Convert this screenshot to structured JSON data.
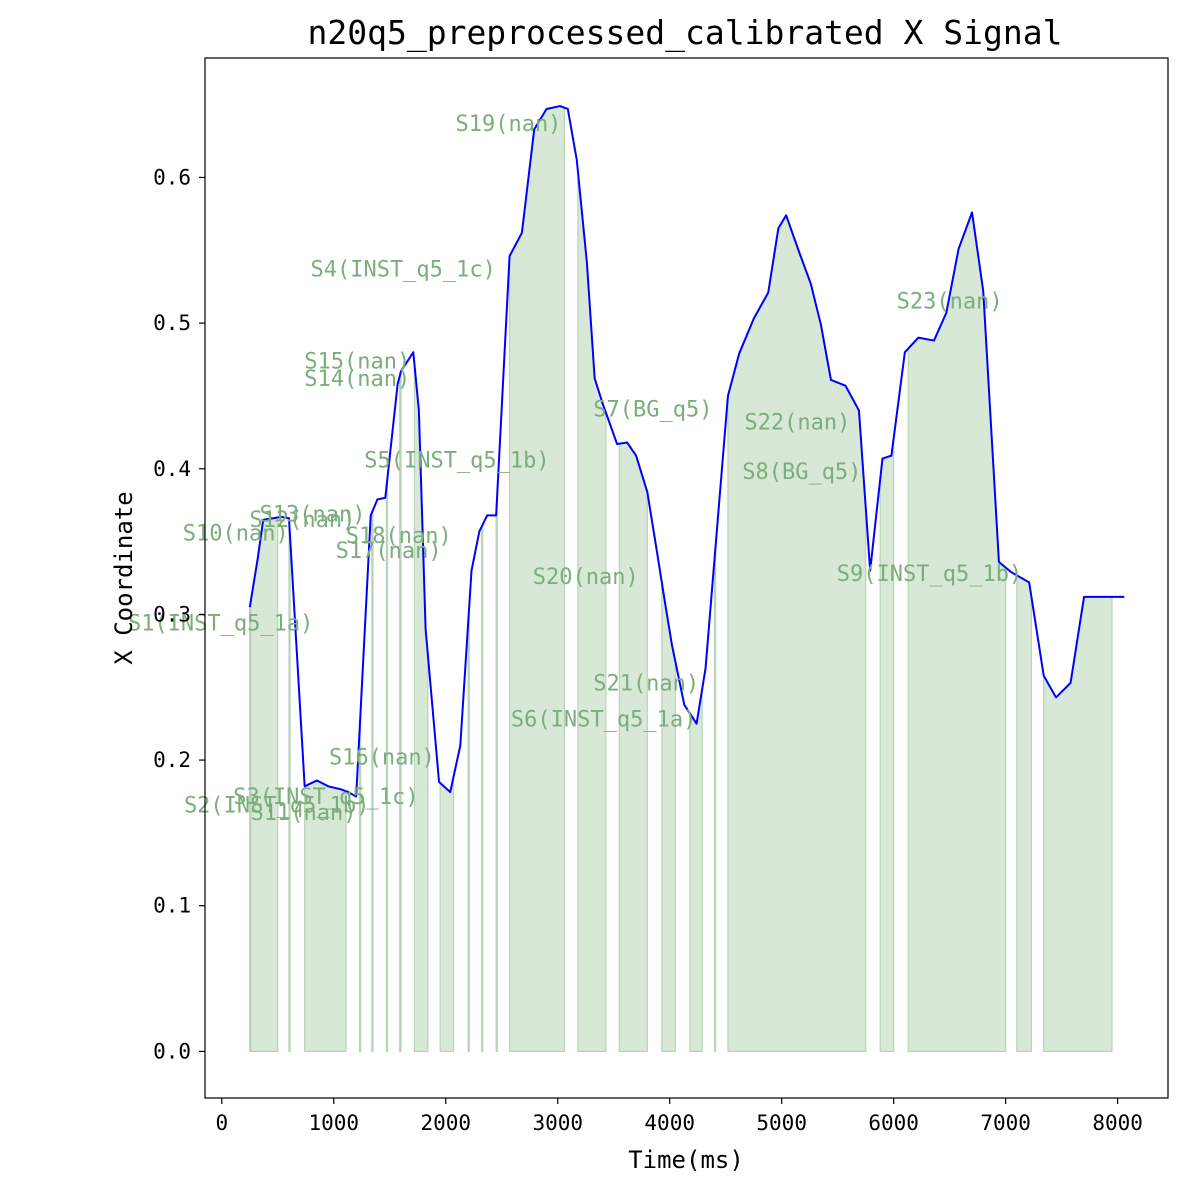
{
  "chart_data": {
    "type": "line",
    "title": "n20q5_preprocessed_calibrated X Signal",
    "xlabel": "Time(ms)",
    "ylabel": "X Coordinate",
    "xlim": [
      -150,
      8450
    ],
    "ylim": [
      -0.032,
      0.682
    ],
    "xticks": [
      0,
      1000,
      2000,
      3000,
      4000,
      5000,
      6000,
      7000,
      8000
    ],
    "yticks": [
      0.0,
      0.1,
      0.2,
      0.3,
      0.4,
      0.5,
      0.6
    ],
    "ytick_labels": [
      "0.0",
      "0.1",
      "0.2",
      "0.3",
      "0.4",
      "0.5",
      "0.6"
    ],
    "grid": false,
    "line_color": "#0000ff",
    "fill_color": "#d7e8d7",
    "fill_edge_color": "#b8d4b8",
    "label_color": "#7cad7c",
    "series": [
      {
        "x": [
          250,
          320,
          370,
          460,
          530,
          600,
          740,
          850,
          950,
          1060,
          1130,
          1200,
          1330,
          1390,
          1460,
          1570,
          1600,
          1660,
          1710,
          1760,
          1820,
          1940,
          2040,
          2130,
          2230,
          2300,
          2370,
          2450,
          2570,
          2680,
          2790,
          2900,
          3020,
          3090,
          3170,
          3260,
          3330,
          3400,
          3530,
          3620,
          3700,
          3800,
          3880,
          3950,
          4020,
          4130,
          4240,
          4320,
          4520,
          4620,
          4750,
          4880,
          4970,
          5040,
          5150,
          5260,
          5350,
          5440,
          5570,
          5690,
          5790,
          5900,
          5980,
          6100,
          6220,
          6360,
          6470,
          6580,
          6700,
          6800,
          6940,
          7050,
          7210,
          7340,
          7450,
          7580,
          7700,
          7810,
          7930,
          8060
        ],
        "values": [
          0.305,
          0.338,
          0.365,
          0.366,
          0.367,
          0.366,
          0.182,
          0.186,
          0.182,
          0.18,
          0.178,
          0.175,
          0.368,
          0.379,
          0.38,
          0.458,
          0.467,
          0.474,
          0.48,
          0.44,
          0.29,
          0.185,
          0.178,
          0.21,
          0.33,
          0.357,
          0.368,
          0.368,
          0.546,
          0.562,
          0.633,
          0.647,
          0.649,
          0.647,
          0.612,
          0.542,
          0.462,
          0.445,
          0.417,
          0.418,
          0.409,
          0.384,
          0.346,
          0.312,
          0.279,
          0.238,
          0.225,
          0.263,
          0.45,
          0.479,
          0.503,
          0.521,
          0.565,
          0.574,
          0.55,
          0.527,
          0.499,
          0.461,
          0.457,
          0.44,
          0.33,
          0.407,
          0.409,
          0.48,
          0.49,
          0.488,
          0.507,
          0.551,
          0.576,
          0.522,
          0.336,
          0.329,
          0.322,
          0.258,
          0.243,
          0.253,
          0.312,
          0.312,
          0.312,
          0.312
        ]
      }
    ],
    "segments": [
      {
        "label": "S1(INST_q5_1a)",
        "start": 250,
        "end": 500
      },
      {
        "label": "S2(INST_q5_1b)",
        "start": 600,
        "end": 610
      },
      {
        "label": "S3(INST_q5_1c)",
        "start": 740,
        "end": 1110
      },
      {
        "label": "S4(INST_q5_1c)",
        "start": 2570,
        "end": 3060
      },
      {
        "label": "S5(INST_q5_1b)",
        "start": 1720,
        "end": 1840
      },
      {
        "label": "S6(INST_q5_1a)",
        "start": 4180,
        "end": 4290
      },
      {
        "label": "S7(BG_q5)",
        "start": 3550,
        "end": 3800
      },
      {
        "label": "S8(BG_q5)",
        "start": 5880,
        "end": 6000
      },
      {
        "label": "S9(INST_q5_1b)",
        "start": 6130,
        "end": 7000
      },
      {
        "label": "S10(nan)",
        "start": 250,
        "end": 260
      },
      {
        "label": "S11(nan)",
        "start": 1230,
        "end": 1240
      },
      {
        "label": "S12(nan)",
        "start": 1340,
        "end": 1350
      },
      {
        "label": "S13(nan)",
        "start": 1470,
        "end": 1480
      },
      {
        "label": "S14(nan)",
        "start": 1590,
        "end": 1600
      },
      {
        "label": "S15(nan)",
        "start": 1590,
        "end": 1600
      },
      {
        "label": "S16(nan)",
        "start": 1950,
        "end": 2070
      },
      {
        "label": "S17(nan)",
        "start": 2200,
        "end": 2210
      },
      {
        "label": "S18(nan)",
        "start": 2320,
        "end": 2330
      },
      {
        "label": "S19(nan)",
        "start": 2450,
        "end": 2460
      },
      {
        "label": "S20(nan)",
        "start": 3180,
        "end": 3430
      },
      {
        "label": "S21(nan)",
        "start": 3930,
        "end": 4050
      },
      {
        "label": "S22(nan)",
        "start": 4520,
        "end": 5750
      },
      {
        "label": "S23(nan)",
        "start": 7100,
        "end": 7230
      },
      {
        "label": "",
        "start": 4400,
        "end": 4410
      },
      {
        "label": "",
        "start": 7340,
        "end": 7950
      }
    ],
    "annotations": [
      {
        "text": "S1(INST_q5_1a)",
        "x": -10,
        "y": 0.293
      },
      {
        "text": "S2(INST_q5_1b)",
        "x": 490,
        "y": 0.168
      },
      {
        "text": "S3(INST_q5_1c)",
        "x": 930,
        "y": 0.174
      },
      {
        "text": "S11(nan)",
        "x": 730,
        "y": 0.163
      },
      {
        "text": "S10(nan)",
        "x": 125,
        "y": 0.355
      },
      {
        "text": "S12(nan)",
        "x": 720,
        "y": 0.364
      },
      {
        "text": "S13(nan)",
        "x": 810,
        "y": 0.368
      },
      {
        "text": "S15(nan)",
        "x": 1210,
        "y": 0.473
      },
      {
        "text": "S14(nan)",
        "x": 1210,
        "y": 0.461
      },
      {
        "text": "S4(INST_q5_1c)",
        "x": 1620,
        "y": 0.536
      },
      {
        "text": "S5(INST_q5_1b)",
        "x": 2100,
        "y": 0.405
      },
      {
        "text": "S18(nan)",
        "x": 1580,
        "y": 0.353
      },
      {
        "text": "S17(nan)",
        "x": 1490,
        "y": 0.343
      },
      {
        "text": "S16(nan)",
        "x": 1430,
        "y": 0.201
      },
      {
        "text": "S19(nan)",
        "x": 2560,
        "y": 0.636
      },
      {
        "text": "S20(nan)",
        "x": 3250,
        "y": 0.325
      },
      {
        "text": "S6(INST_q5_1a)",
        "x": 3410,
        "y": 0.227
      },
      {
        "text": "S21(nan)",
        "x": 3790,
        "y": 0.252
      },
      {
        "text": "S7(BG_q5)",
        "x": 3850,
        "y": 0.44
      },
      {
        "text": "S22(nan)",
        "x": 5140,
        "y": 0.431
      },
      {
        "text": "S8(BG_q5)",
        "x": 5180,
        "y": 0.397
      },
      {
        "text": "S9(INST_q5_1b)",
        "x": 6320,
        "y": 0.327
      },
      {
        "text": "S23(nan)",
        "x": 6500,
        "y": 0.514
      }
    ]
  }
}
